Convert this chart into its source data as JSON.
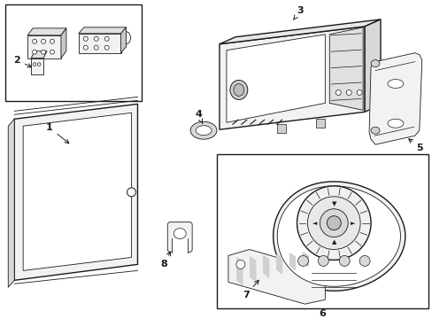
{
  "background_color": "#ffffff",
  "line_color": "#1a1a1a",
  "gray_fill": "#f2f2f2",
  "dark_gray": "#d0d0d0"
}
